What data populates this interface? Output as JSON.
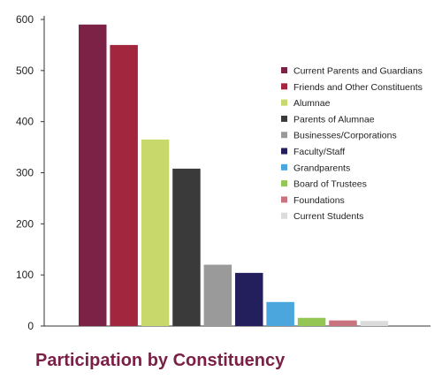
{
  "chart_data": {
    "type": "bar",
    "title": "Participation by Constituency",
    "xlabel": "",
    "ylabel": "",
    "ylim": [
      0,
      600
    ],
    "yticks": [
      0,
      100,
      200,
      300,
      400,
      500,
      600
    ],
    "grid": false,
    "legend_position": "right",
    "categories": [
      "Current Parents and Guardians",
      "Friends and Other Constituents",
      "Alumnae",
      "Parents of Alumnae",
      "Businesses/Corporations",
      "Faculty/Staff",
      "Grandparents",
      "Board of Trustees",
      "Foundations",
      "Current Students"
    ],
    "values": [
      590,
      550,
      365,
      308,
      120,
      104,
      47,
      16,
      11,
      10
    ],
    "colors": [
      "#7b2246",
      "#a3263f",
      "#c9d86a",
      "#3a3a3a",
      "#9a9a9a",
      "#231f5c",
      "#4aa6dc",
      "#94c653",
      "#c9737f",
      "#dcdcdc"
    ]
  }
}
